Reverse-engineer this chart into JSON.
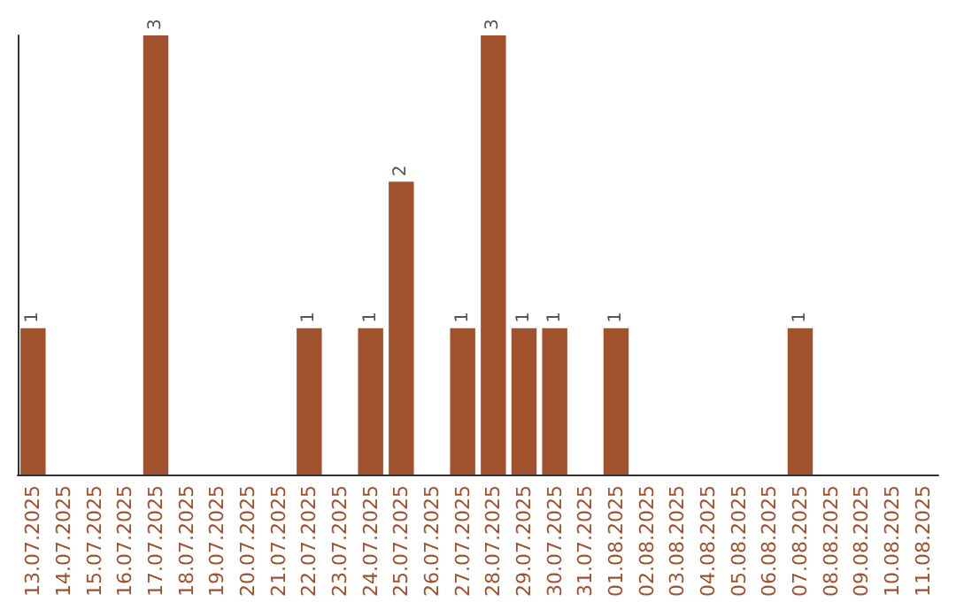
{
  "chart_data": {
    "type": "bar",
    "categories": [
      "13.07.2025",
      "14.07.2025",
      "15.07.2025",
      "16.07.2025",
      "17.07.2025",
      "18.07.2025",
      "19.07.2025",
      "20.07.2025",
      "21.07.2025",
      "22.07.2025",
      "23.07.2025",
      "24.07.2025",
      "25.07.2025",
      "26.07.2025",
      "27.07.2025",
      "28.07.2025",
      "29.07.2025",
      "30.07.2025",
      "31.07.2025",
      "01.08.2025",
      "02.08.2025",
      "03.08.2025",
      "04.08.2025",
      "05.08.2025",
      "06.08.2025",
      "07.08.2025",
      "08.08.2025",
      "09.08.2025",
      "10.08.2025",
      "11.08.2025"
    ],
    "values": [
      1,
      0,
      0,
      0,
      3,
      0,
      0,
      0,
      0,
      1,
      0,
      1,
      2,
      0,
      1,
      3,
      1,
      1,
      0,
      1,
      0,
      0,
      0,
      0,
      0,
      1,
      0,
      0,
      0,
      0
    ],
    "value_labels": [
      "1",
      null,
      null,
      null,
      "3",
      null,
      null,
      null,
      null,
      "1",
      null,
      "1",
      "2",
      null,
      "1",
      "3",
      "1",
      "1",
      null,
      "1",
      null,
      null,
      null,
      null,
      null,
      "1",
      null,
      null,
      null,
      null
    ],
    "color": "#a0522d",
    "ylim": [
      0,
      3
    ],
    "tick_labels": "x"
  }
}
